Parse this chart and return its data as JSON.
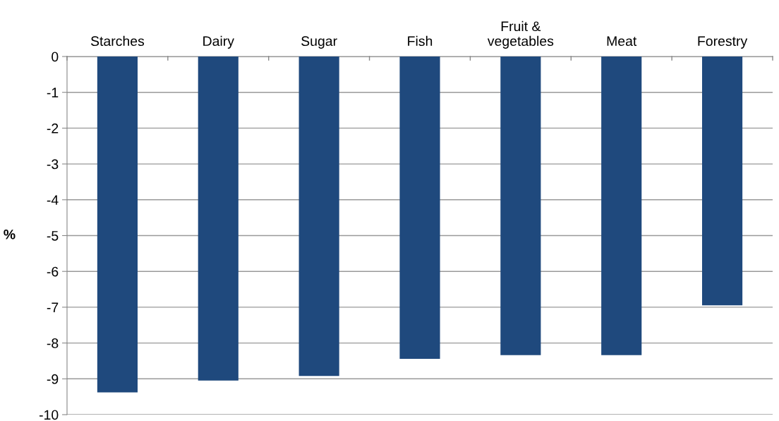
{
  "chart_data": {
    "type": "bar",
    "ylabel": "%",
    "categories": [
      "Starches",
      "Dairy",
      "Sugar",
      "Fish",
      "Fruit &\nvegetables",
      "Meat",
      "Forestry"
    ],
    "values": [
      -9.38,
      -9.05,
      -8.92,
      -8.44,
      -8.34,
      -8.34,
      -6.95
    ],
    "color": "#1f497d",
    "ylim": [
      -10,
      0
    ],
    "yticks": [
      -10,
      -9,
      -8,
      -7,
      -6,
      -5,
      -4,
      -3,
      -2,
      -1,
      0
    ],
    "grid": "y",
    "legend": false
  }
}
